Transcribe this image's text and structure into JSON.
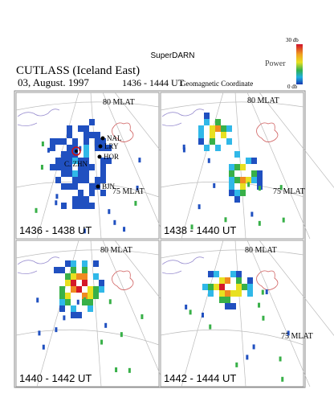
{
  "header": {
    "network": "SuperDARN",
    "title": "CUTLASS (Iceland East)",
    "date": "03, August. 1997",
    "time_range": "1436 - 1444 UT",
    "coordinates": "Geomagnetic Coordinate"
  },
  "colorbar": {
    "max_label": "30 db",
    "label": "Power",
    "min_label": "0 db"
  },
  "panels": [
    {
      "time": "1436 - 1438 UT",
      "lat_labels": [
        "80 MLAT",
        "75 MLAT"
      ],
      "stations": [
        "NAL",
        "LRY",
        "HOR",
        "C. ZHN",
        "BJN"
      ]
    },
    {
      "time": "1438 - 1440 UT",
      "lat_labels": [
        "80 MLAT",
        "75 MLAT"
      ]
    },
    {
      "time": "1440 - 1442 UT",
      "lat_labels": [
        "80 MLAT"
      ]
    },
    {
      "time": "1442 - 1444 UT",
      "lat_labels": [
        "80 MLAT",
        "75 MLAT"
      ]
    }
  ]
}
